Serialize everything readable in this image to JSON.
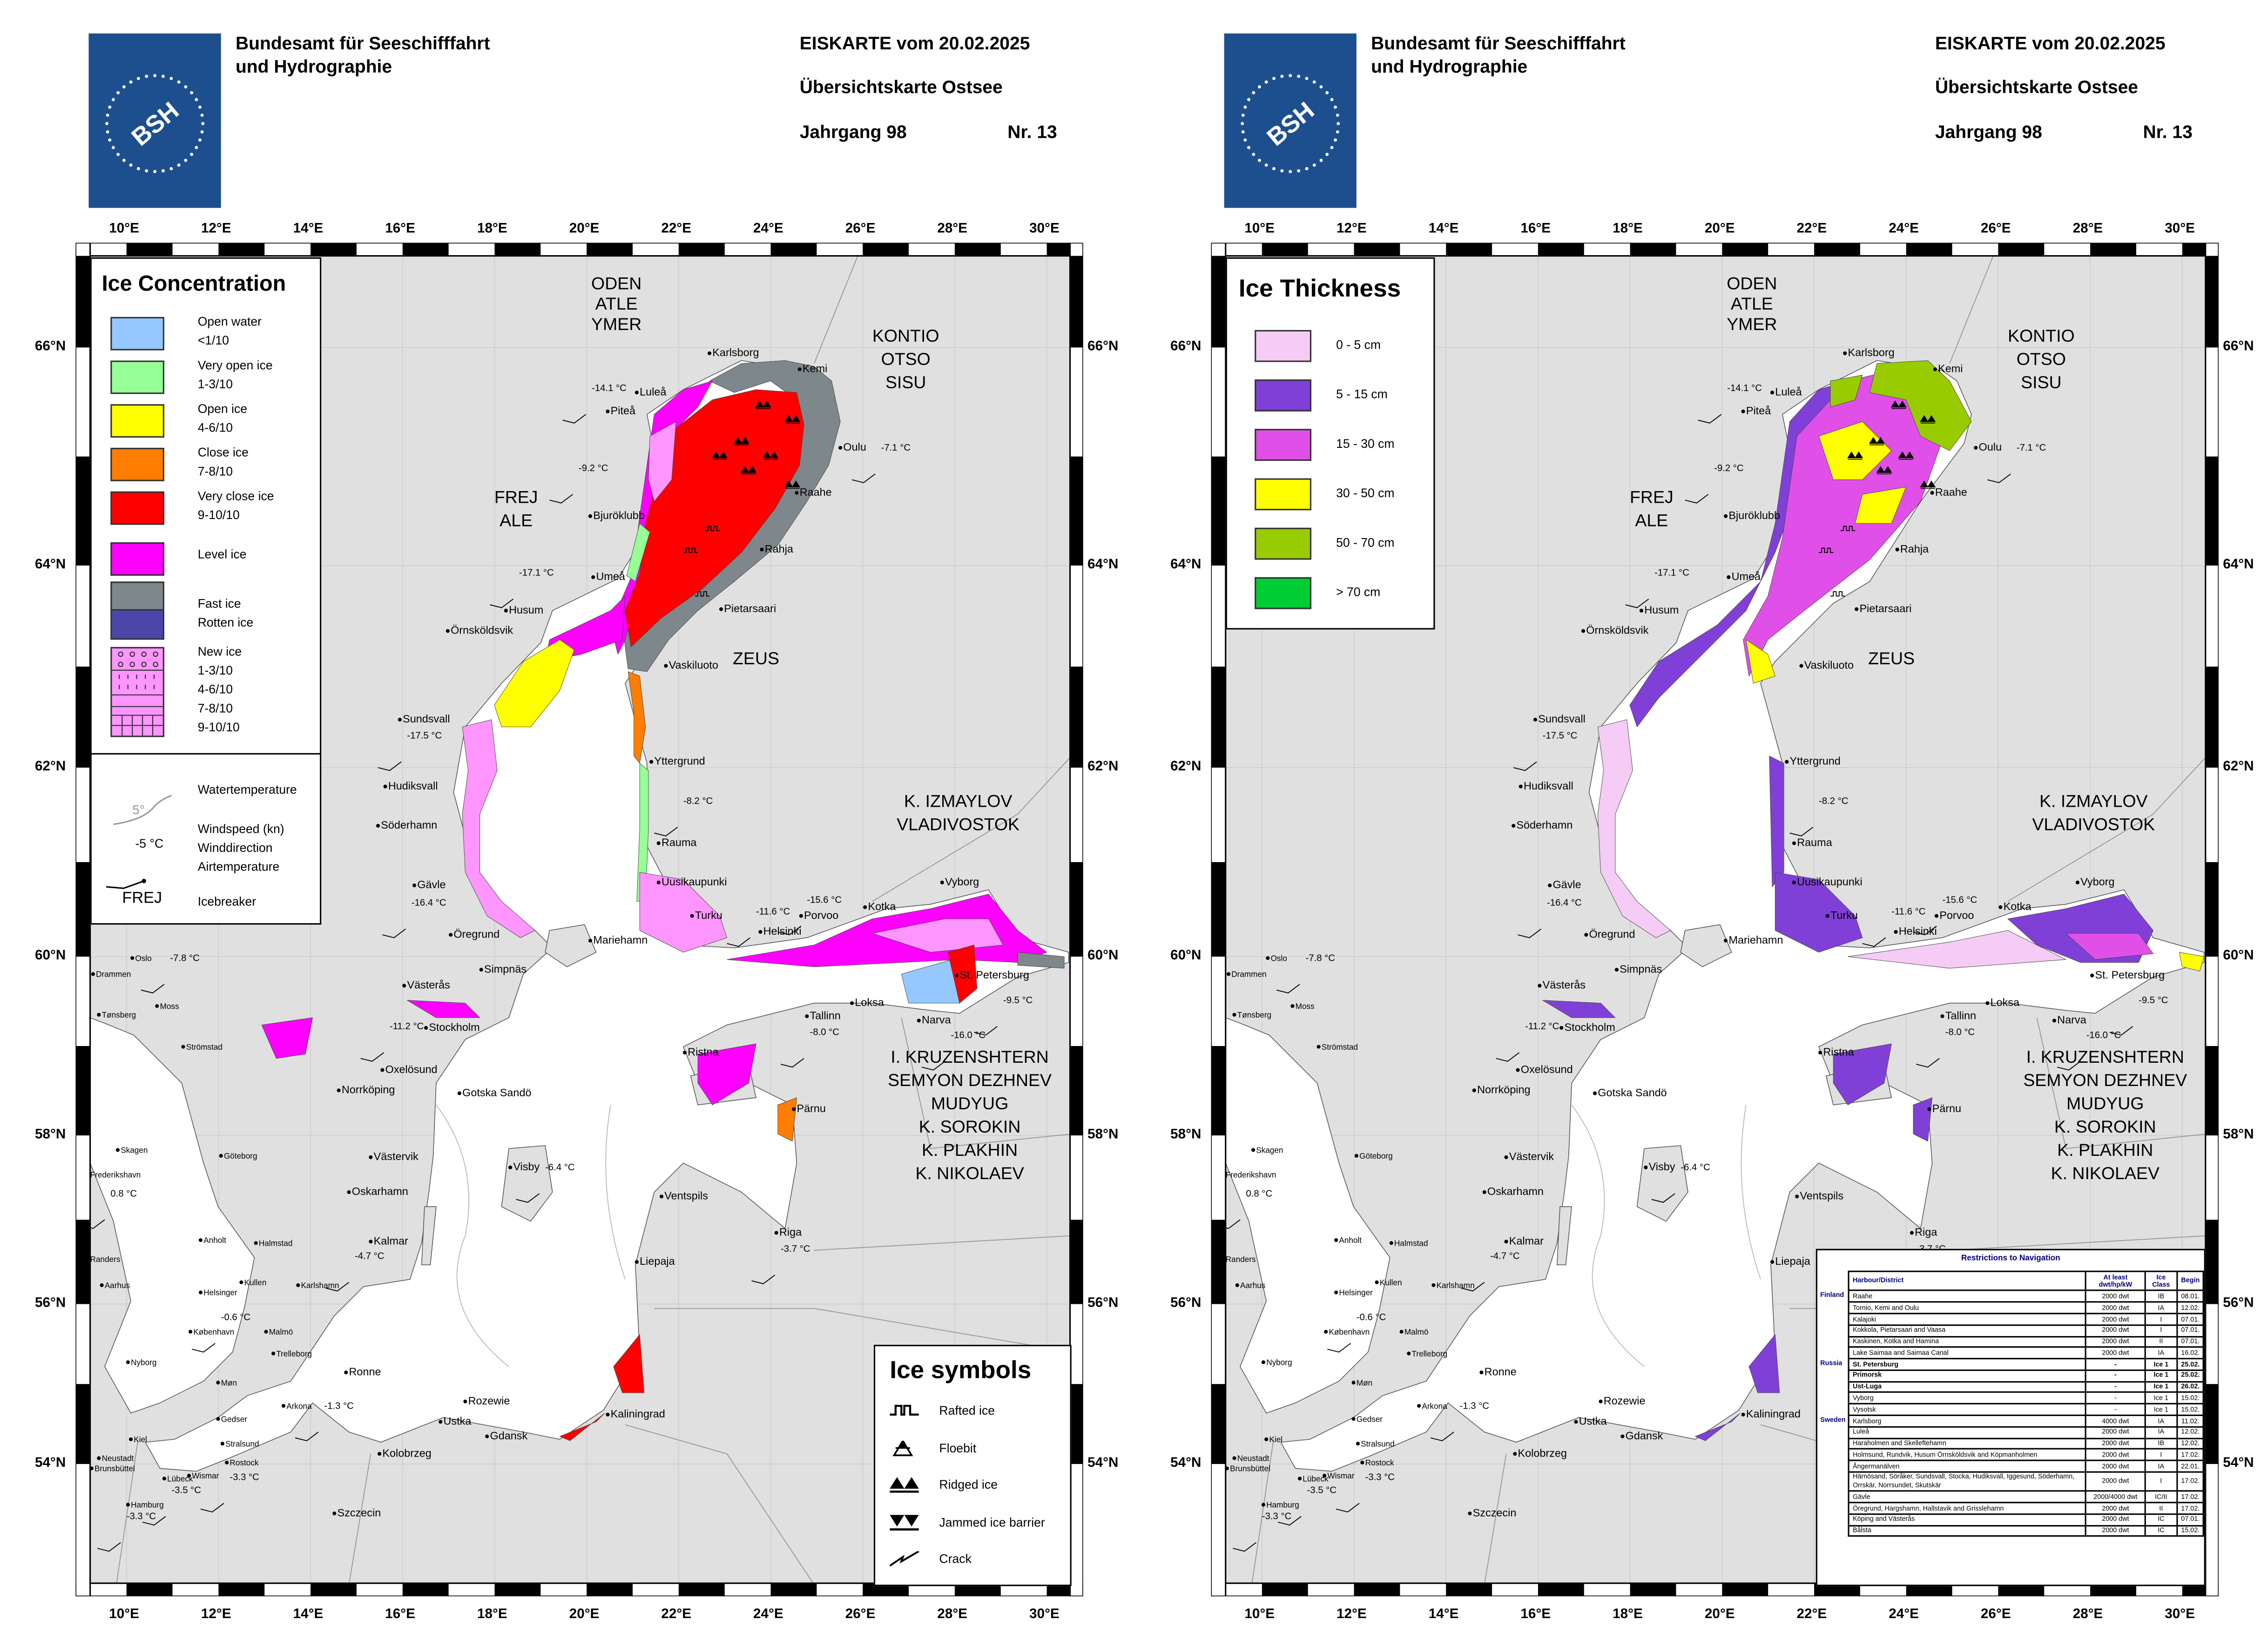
{
  "header": {
    "org_line1": "Bundesamt für Seeschifffahrt",
    "org_line2": "und Hydrographie",
    "logo_text": "BSH",
    "chart_title": "EISKARTE vom 20.02.2025",
    "subtitle": "Übersichtskarte Ostsee",
    "volume": "Jahrgang 98",
    "number": "Nr. 13"
  },
  "axes": {
    "lon_labels": [
      "10°E",
      "12°E",
      "14°E",
      "16°E",
      "18°E",
      "20°E",
      "22°E",
      "24°E",
      "26°E",
      "28°E",
      "30°E"
    ],
    "lat_labels": [
      "66°N",
      "64°N",
      "62°N",
      "60°N",
      "58°N",
      "56°N",
      "54°N"
    ]
  },
  "colors": {
    "land": "#e0e0e0",
    "sea": "#ffffff",
    "logo": "#1d4f8f"
  },
  "concentration_legend": {
    "title": "Ice Concentration",
    "items": [
      {
        "label": "Open water",
        "sub": "<1/10",
        "color": "#96c8ff"
      },
      {
        "label": "Very open ice",
        "sub": "1-3/10",
        "color": "#96ff96"
      },
      {
        "label": "Open ice",
        "sub": "4-6/10",
        "color": "#ffff00"
      },
      {
        "label": "Close ice",
        "sub": "7-8/10",
        "color": "#ff7d00"
      },
      {
        "label": "Very close ice",
        "sub": "9-10/10",
        "color": "#ff0000"
      },
      {
        "label": "Level ice",
        "sub": "",
        "color": "#ff00ff"
      },
      {
        "label": "Fast ice",
        "sub": "Rotten ice",
        "color": "#7d878c",
        "color2": "#4b46aa"
      },
      {
        "label": "New ice",
        "sub": "1-3/10",
        "sub2": "4-6/10",
        "sub3": "7-8/10",
        "sub4": "9-10/10",
        "color": "#ff96ff"
      }
    ],
    "water_temperature": "Watertemperature",
    "water_temperature_sample": "5°",
    "wind_sample": "-5 °C",
    "wind_line1": "Windspeed (kn)",
    "wind_line2": "Winddirection",
    "wind_line3": "Airtemperature",
    "icebreaker_sample": "FREJ",
    "icebreaker_label": "Icebreaker"
  },
  "thickness_legend": {
    "title": "Ice Thickness",
    "items": [
      {
        "label": "0 - 5 cm",
        "color": "#f5ccf5"
      },
      {
        "label": "5 - 15 cm",
        "color": "#8040d8"
      },
      {
        "label": "15 - 30 cm",
        "color": "#e050e8"
      },
      {
        "label": "30 - 50 cm",
        "color": "#ffff00"
      },
      {
        "label": "50 - 70 cm",
        "color": "#99cc00"
      },
      {
        "label": "> 70 cm",
        "color": "#00cc33"
      }
    ]
  },
  "ice_symbols": {
    "title": "Ice symbols",
    "items": [
      "Rafted ice",
      "Floebit",
      "Ridged ice",
      "Jammed ice barrier",
      "Crack"
    ]
  },
  "icebreakers": {
    "bothnian_north": [
      "ODEN",
      "ATLE",
      "YMER"
    ],
    "bothnian_east": [
      "KONTIO",
      "OTSO",
      "SISU"
    ],
    "bothnian_west": [
      "FREJ",
      "ALE"
    ],
    "kvarken": [
      "ZEUS"
    ],
    "gulf_finland": [
      "K. IZMAYLOV",
      "VLADIVOSTOK"
    ],
    "baltic_proper": [
      "I. KRUZENSHTERN",
      "SEMYON DEZHNEV",
      "MUDYUG",
      "K. SOROKIN",
      "K. PLAKHIN",
      "K. NIKOLAEV"
    ]
  },
  "places": [
    "Karlsborg",
    "Kemi",
    "Luleå",
    "Piteå",
    "Oulu",
    "Raahe",
    "Bjuröklubb",
    "Rahja",
    "Umeå",
    "Husum",
    "Pietarsaari",
    "Örnsköldsvik",
    "Vaskiluoto",
    "Sundsvall",
    "Yttergrund",
    "Hudiksvall",
    "Söderhamn",
    "Rauma",
    "Uusikaupunki",
    "Gävle",
    "Turku",
    "Öregrund",
    "Mariehamn",
    "Helsinki",
    "Porvoo",
    "Kotka",
    "Vyborg",
    "Simpnäs",
    "St. Petersburg",
    "Västerås",
    "Loksa",
    "Narva",
    "Tallinn",
    "Stockholm",
    "Ristna",
    "Oxelösund",
    "Norrköping",
    "Gotska Sandö",
    "Pärnu",
    "Västervik",
    "Visby",
    "Ventspils",
    "Oskarhamn",
    "Riga",
    "Kalmar",
    "Liepaja",
    "Ronne",
    "Rozewie",
    "Kaliningrad",
    "Gdansk",
    "Ustka",
    "Kolobrzeg",
    "Szczecin",
    "Arkona",
    "Drammen",
    "Oslo",
    "Moss",
    "Tønsberg",
    "Strömstad",
    "Skagen",
    "Frederikshavn",
    "Göteborg",
    "Anholt",
    "Halmstad",
    "Randers",
    "Aarhus",
    "Kullen",
    "Helsinger",
    "Karlshamn",
    "København",
    "Malmö",
    "Trelleborg",
    "Nyborg",
    "Gedser",
    "Møn",
    "Kiel",
    "Stralsund",
    "Rostock",
    "Neustadt",
    "Lübeck",
    "Wismar",
    "Brunsbüttel",
    "Hamburg"
  ],
  "air_temperatures": [
    "-14.1 °C",
    "-9.2 °C",
    "-7.1 °C",
    "-17.1 °C",
    "-17.5 °C",
    "-8.2 °C",
    "-16.4 °C",
    "-15.6 °C",
    "-11.6 °C",
    "-7.8 °C",
    "-9.5 °C",
    "-16.0 °C",
    "-11.2 °C",
    "-8.0 °C",
    "-6.4 °C",
    "0.8 °C",
    "-3.7 °C",
    "-4.7 °C",
    "-0.6 °C",
    "-1.3 °C",
    "-3.5 °C",
    "-3.3 °C",
    "-3.3 °C"
  ],
  "restrictions": {
    "title": "Restrictions to Navigation",
    "headers": [
      "",
      "Harbour/District",
      "At least dwt/hp/kW",
      "Ice Class",
      "Begin"
    ],
    "groups": [
      {
        "country": "Finland",
        "rows": [
          {
            "harbour": "Raahe",
            "min": "2000 dwt",
            "class": "IB",
            "begin": "08.01."
          },
          {
            "harbour": "Tornio, Kemi and Oulu",
            "min": "2000 dwt",
            "class": "IA",
            "begin": "12.02."
          },
          {
            "harbour": "Kalajoki",
            "min": "2000 dwt",
            "class": "I",
            "begin": "07.01."
          },
          {
            "harbour": "Kokkola, Pietarsaari and Vaasa",
            "min": "2000 dwt",
            "class": "I",
            "begin": "07.01."
          },
          {
            "harbour": "Kaskinen, Kotka and Hamina",
            "min": "2000 dwt",
            "class": "II",
            "begin": "07.01."
          },
          {
            "harbour": "Lake Saimaa and Saimaa Canal",
            "min": "2000 dwt",
            "class": "IA",
            "begin": "16.02."
          }
        ]
      },
      {
        "country": "Russia",
        "rows": [
          {
            "harbour": "St. Petersburg",
            "min": "-",
            "class": "Ice 1",
            "begin": "25.02.",
            "bold": true
          },
          {
            "harbour": "Primorsk",
            "min": "-",
            "class": "Ice 1",
            "begin": "25.02.",
            "bold": true
          },
          {
            "harbour": "Ust-Luga",
            "min": "-",
            "class": "Ice 1",
            "begin": "26.02.",
            "bold": true
          },
          {
            "harbour": "Vyborg",
            "min": "-",
            "class": "Ice 1",
            "begin": "15.02."
          },
          {
            "harbour": "Vysotsk",
            "min": "-",
            "class": "Ice 1",
            "begin": "15.02."
          }
        ]
      },
      {
        "country": "Sweden",
        "rows": [
          {
            "harbour": "Karlsborg",
            "min": "4000 dwt",
            "class": "IA",
            "begin": "11.02."
          },
          {
            "harbour": "Luleå",
            "min": "2000 dwt",
            "class": "IA",
            "begin": "12.02."
          },
          {
            "harbour": "Haraholmen and Skelleftehamn",
            "min": "2000 dwt",
            "class": "IB",
            "begin": "12.02."
          },
          {
            "harbour": "Holmsund, Rundvik, Husum Örnsköldsvik and Köpmanholmen",
            "min": "2000 dwt",
            "class": "I",
            "begin": "17.02."
          },
          {
            "harbour": "Ångermanälven",
            "min": "2000 dwt",
            "class": "IA",
            "begin": "22.01."
          },
          {
            "harbour": "Härnösand, Söråker, Sundsvall, Stocka, Hudiksvall, Iggesund, Söderhamn, Orrskär, Norrsundet, Skutskär",
            "min": "2000 dwt",
            "class": "I",
            "begin": "17.02."
          },
          {
            "harbour": "Gävle",
            "min": "2000/4000 dwt",
            "class": "IC/II",
            "begin": "17.02."
          },
          {
            "harbour": "Öregrund, Hargshamn, Hallstavik and Grisslehamn",
            "min": "2000 dwt",
            "class": "II",
            "begin": "17.02."
          },
          {
            "harbour": "Köping and Västerås",
            "min": "2000 dwt",
            "class": "IC",
            "begin": "07.01."
          },
          {
            "harbour": "Bålsta",
            "min": "2000 dwt",
            "class": "IC",
            "begin": "15.02."
          }
        ]
      }
    ]
  }
}
